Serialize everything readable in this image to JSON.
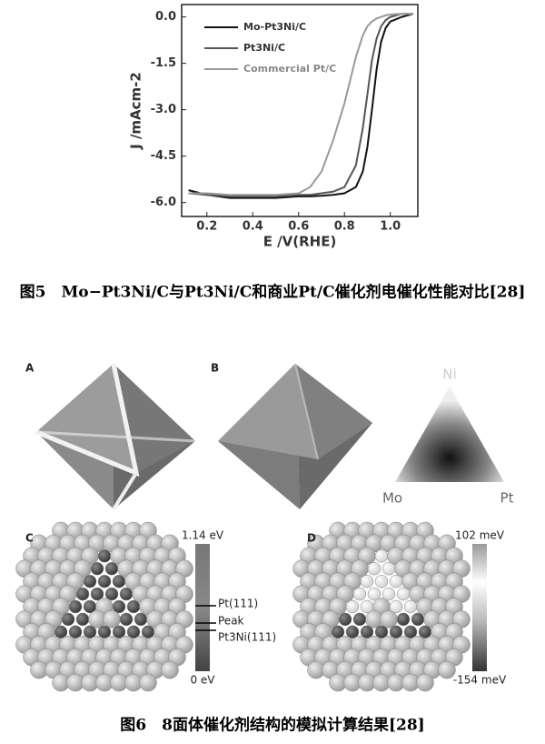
{
  "chart_data": {
    "type": "line",
    "x_label": "E /V(RHE)",
    "y_label": "J /mAcm-2",
    "xlim": [
      0.09,
      1.12
    ],
    "ylim": [
      -6.45,
      0.4
    ],
    "xticks": [
      0.2,
      0.4,
      0.6,
      0.8,
      {
        "value": 1.0,
        "label": "1.0"
      }
    ],
    "yticks": [
      {
        "value": 0,
        "label": "0.0"
      },
      -1.5,
      {
        "value": -3,
        "label": "-3.0"
      },
      -4.5,
      {
        "value": -6,
        "label": "-6.0"
      }
    ],
    "legend": "upper left",
    "x": [
      0.12,
      0.2,
      0.3,
      0.4,
      0.5,
      0.6,
      0.65,
      0.7,
      0.75,
      0.8,
      0.85,
      0.88,
      0.9,
      0.92,
      0.94,
      0.96,
      0.98,
      1.0,
      1.05,
      1.1
    ],
    "series": [
      {
        "name": "Mo-Pt3Ni/C",
        "color": "#111111",
        "values": [
          -5.6,
          -5.75,
          -5.85,
          -5.85,
          -5.85,
          -5.8,
          -5.8,
          -5.78,
          -5.75,
          -5.7,
          -5.5,
          -5.0,
          -4.2,
          -3.0,
          -1.7,
          -0.8,
          -0.35,
          -0.15,
          0.0,
          0.1
        ]
      },
      {
        "name": "Pt3Ni/C",
        "color": "#555555",
        "values": [
          -5.7,
          -5.75,
          -5.8,
          -5.8,
          -5.8,
          -5.75,
          -5.75,
          -5.7,
          -5.65,
          -5.5,
          -4.8,
          -3.6,
          -2.5,
          -1.4,
          -0.7,
          -0.3,
          -0.1,
          0.0,
          0.1,
          0.1
        ]
      },
      {
        "name": "Commercial Pt/C",
        "color": "#999999",
        "values": [
          -5.7,
          -5.7,
          -5.75,
          -5.75,
          -5.75,
          -5.7,
          -5.5,
          -5.0,
          -4.0,
          -2.8,
          -1.3,
          -0.6,
          -0.3,
          -0.15,
          -0.05,
          0.0,
          0.05,
          0.08,
          0.1,
          0.1
        ]
      }
    ]
  },
  "caption5": "图5　Mo−Pt3Ni/C与Pt3Ni/C和商业Pt/C催化剂电催化性能对比[28]",
  "figure6": {
    "panels": [
      "A",
      "B",
      "C",
      "D"
    ],
    "ternary": [
      "Ni",
      "Mo",
      "Pt"
    ],
    "colorbar_c": {
      "top": "1.14 eV",
      "bottom": "0 eV",
      "marks": [
        "Pt(111)",
        "Peak",
        "Pt3Ni(111)"
      ]
    },
    "colorbar_d": {
      "top": "102 meV",
      "bottom": "-154 meV"
    }
  },
  "caption6": "图6　8面体催化剂结构的模拟计算结果[28]"
}
